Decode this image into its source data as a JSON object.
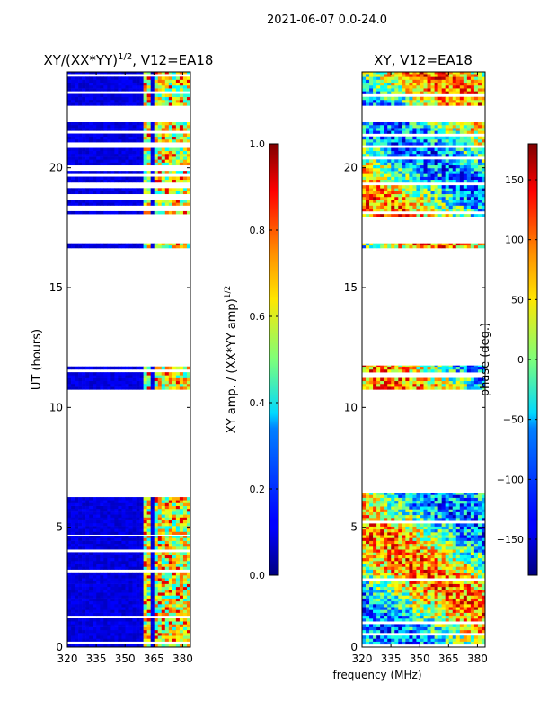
{
  "suptitle": "2021-06-07 0.0-24.0",
  "colors": {
    "frame": "#000000",
    "background": "#ffffff",
    "gap": "#ffffff"
  },
  "chart_data": [
    {
      "type": "heatmap",
      "title": "XY/(XX*YY)^{1/2}, V12=EA18",
      "title_parts": {
        "main": "XY/(XX*YY)",
        "sup": "1/2",
        "tail": ", V12=EA18"
      },
      "xlabel": "",
      "ylabel": "UT (hours)",
      "xlim": [
        320,
        384
      ],
      "ylim": [
        0,
        24
      ],
      "xticks": [
        320,
        335,
        350,
        365,
        380
      ],
      "yticks": [
        0,
        5,
        10,
        15,
        20
      ],
      "data_segments_hours": [
        [
          0,
          4.65
        ],
        [
          4.7,
          6.45
        ],
        [
          10.75,
          11.75
        ],
        [
          16.65,
          16.85
        ],
        [
          17.95,
          21.9
        ],
        [
          22.6,
          24
        ]
      ],
      "band_columns_mhz": [
        [
          360,
          363
        ],
        [
          366,
          370
        ],
        [
          371,
          376
        ],
        [
          377,
          380
        ],
        [
          381,
          384
        ]
      ],
      "colorbar": {
        "label": "XY amp. / (XX*YY amp)^{1/2}",
        "label_main": "XY amp. / (XX*YY amp)",
        "label_sup": "1/2",
        "range": [
          0.0,
          1.0
        ],
        "ticks": [
          0.0,
          0.2,
          0.4,
          0.6,
          0.8,
          1.0
        ],
        "tick_labels": [
          "0.0",
          "0.2",
          "0.4",
          "0.6",
          "0.8",
          "1.0"
        ],
        "colormap": "jet"
      }
    },
    {
      "type": "heatmap",
      "title": "XY, V12=EA18",
      "xlabel": "frequency (MHz)",
      "ylabel": "",
      "xlim": [
        320,
        384
      ],
      "ylim": [
        0,
        24
      ],
      "xticks": [
        320,
        335,
        350,
        365,
        380
      ],
      "yticks": [
        0,
        5,
        10,
        15,
        20
      ],
      "data_segments_hours": [
        [
          0,
          6.45
        ],
        [
          10.75,
          11.75
        ],
        [
          16.65,
          16.85
        ],
        [
          17.95,
          21.9
        ],
        [
          22.6,
          24
        ]
      ],
      "colorbar": {
        "label": "phase (deg.)",
        "range": [
          -180,
          180
        ],
        "ticks": [
          -150,
          -100,
          -50,
          0,
          50,
          100,
          150
        ],
        "tick_labels": [
          "−150",
          "−100",
          "−50",
          "0",
          "50",
          "100",
          "150"
        ],
        "colormap": "jet"
      }
    }
  ]
}
